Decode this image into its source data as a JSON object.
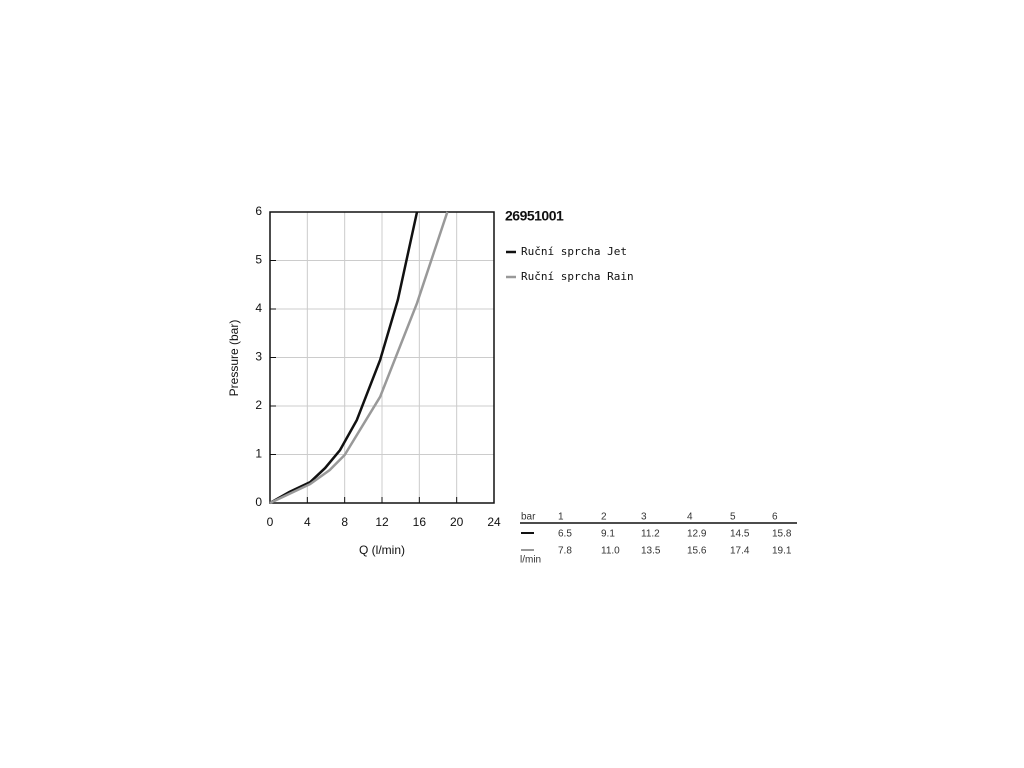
{
  "chart_data": {
    "type": "line",
    "title": "26951001",
    "x_label": "Q (l/min)",
    "y_label": "Pressure (bar)",
    "xlim": [
      0,
      24
    ],
    "xticks": [
      0,
      4,
      8,
      12,
      16,
      20,
      24
    ],
    "ylim": [
      0,
      6
    ],
    "yticks": [
      0,
      1,
      2,
      3,
      4,
      5,
      6
    ],
    "grid": true,
    "series": [
      {
        "name": "Ruční sprcha Jet",
        "color": "#111111",
        "x": [
          0,
          2.1,
          4.3,
          5.9,
          7.5,
          9.3,
          11.8,
          13.7,
          15.75
        ],
        "values": [
          0,
          0.23,
          0.43,
          0.72,
          1.09,
          1.71,
          2.95,
          4.19,
          6
        ]
      },
      {
        "name": "Ruční sprcha Rain",
        "color": "#999999",
        "x": [
          0,
          2.1,
          4.3,
          6.4,
          8.0,
          11.8,
          15.75,
          19.0
        ],
        "values": [
          0,
          0.19,
          0.39,
          0.68,
          0.99,
          2.19,
          4.12,
          6
        ]
      }
    ]
  },
  "table": {
    "header_label": "bar",
    "columns": [
      "1",
      "2",
      "3",
      "4",
      "5",
      "6"
    ],
    "rows": [
      [
        "6.5",
        "9.1",
        "11.2",
        "12.9",
        "14.5",
        "15.8"
      ],
      [
        "7.8",
        "11.0",
        "13.5",
        "15.6",
        "17.4",
        "19.1"
      ]
    ],
    "unit_label": "l/min"
  }
}
